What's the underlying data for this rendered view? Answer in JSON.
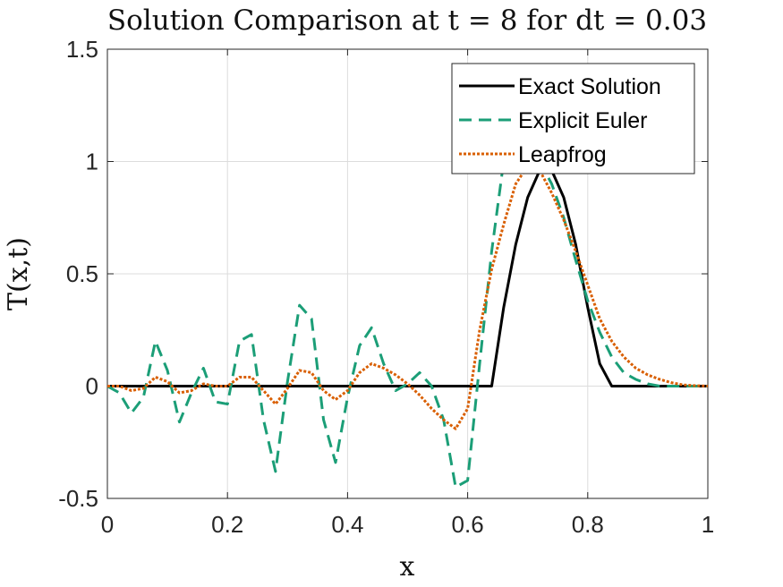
{
  "chart_data": {
    "type": "line",
    "title": "Solution Comparison at t = 8 for dt = 0.03",
    "xlabel": "x",
    "ylabel": "T(x,t)",
    "xlim": [
      0,
      1
    ],
    "ylim": [
      -0.5,
      1.5
    ],
    "xticks": [
      0,
      0.2,
      0.4,
      0.6,
      0.8,
      1
    ],
    "xtick_labels": [
      "0",
      "0.2",
      "0.4",
      "0.6",
      "0.8",
      "1"
    ],
    "yticks": [
      -0.5,
      0,
      0.5,
      1,
      1.5
    ],
    "ytick_labels": [
      "-0.5",
      "0",
      "0.5",
      "1",
      "1.5"
    ],
    "grid": true,
    "legend_position": "top-right",
    "series": [
      {
        "name": "Exact Solution",
        "color": "#000000",
        "style": "solid",
        "x": [
          0,
          0.64,
          0.66,
          0.68,
          0.7,
          0.72,
          0.74,
          0.76,
          0.78,
          0.8,
          0.82,
          0.84,
          1.0
        ],
        "y": [
          0,
          0,
          0.35,
          0.63,
          0.84,
          0.96,
          0.96,
          0.84,
          0.63,
          0.35,
          0.1,
          0,
          0
        ]
      },
      {
        "name": "Explicit Euler",
        "color": "#1b9e77",
        "style": "dashed",
        "x": [
          0,
          0.02,
          0.04,
          0.06,
          0.08,
          0.1,
          0.12,
          0.14,
          0.16,
          0.18,
          0.2,
          0.22,
          0.24,
          0.26,
          0.28,
          0.3,
          0.32,
          0.34,
          0.36,
          0.38,
          0.4,
          0.42,
          0.44,
          0.46,
          0.48,
          0.5,
          0.52,
          0.54,
          0.56,
          0.58,
          0.6,
          0.62,
          0.64,
          0.66,
          0.68,
          0.7,
          0.72,
          0.74,
          0.76,
          0.78,
          0.8,
          0.82,
          0.84,
          0.86,
          0.88,
          0.9,
          0.92,
          0.94,
          0.96,
          0.98,
          1.0
        ],
        "y": [
          0,
          -0.03,
          -0.12,
          -0.05,
          0.2,
          0.07,
          -0.16,
          -0.03,
          0.08,
          -0.07,
          -0.08,
          0.2,
          0.23,
          -0.15,
          -0.38,
          0.02,
          0.36,
          0.3,
          -0.15,
          -0.34,
          -0.05,
          0.18,
          0.26,
          0.1,
          -0.02,
          0.01,
          0.06,
          0.0,
          -0.15,
          -0.45,
          -0.42,
          0.1,
          0.6,
          1.0,
          1.05,
          1.05,
          1.0,
          0.9,
          0.75,
          0.56,
          0.38,
          0.24,
          0.13,
          0.06,
          0.03,
          0.01,
          0.0,
          0.0,
          0.0,
          0.0,
          0.0
        ]
      },
      {
        "name": "Leapfrog",
        "color": "#d95f02",
        "style": "dotted",
        "x": [
          0,
          0.02,
          0.04,
          0.06,
          0.08,
          0.1,
          0.12,
          0.14,
          0.16,
          0.18,
          0.2,
          0.22,
          0.24,
          0.26,
          0.28,
          0.3,
          0.32,
          0.34,
          0.36,
          0.38,
          0.4,
          0.42,
          0.44,
          0.46,
          0.48,
          0.5,
          0.52,
          0.54,
          0.56,
          0.58,
          0.6,
          0.62,
          0.64,
          0.66,
          0.68,
          0.7,
          0.72,
          0.74,
          0.76,
          0.78,
          0.8,
          0.82,
          0.84,
          0.86,
          0.88,
          0.9,
          0.92,
          0.94,
          0.96,
          0.98,
          1.0
        ],
        "y": [
          0,
          0.0,
          -0.02,
          -0.01,
          0.04,
          0.02,
          -0.03,
          -0.02,
          0.01,
          0.0,
          0.0,
          0.04,
          0.04,
          -0.02,
          -0.08,
          -0.01,
          0.07,
          0.06,
          -0.02,
          -0.06,
          -0.02,
          0.06,
          0.1,
          0.08,
          0.05,
          0.01,
          -0.04,
          -0.1,
          -0.15,
          -0.19,
          -0.1,
          0.25,
          0.52,
          0.72,
          0.9,
          0.98,
          0.96,
          0.86,
          0.74,
          0.6,
          0.45,
          0.3,
          0.2,
          0.13,
          0.08,
          0.05,
          0.03,
          0.015,
          0.005,
          0.002,
          0.0
        ]
      }
    ]
  }
}
